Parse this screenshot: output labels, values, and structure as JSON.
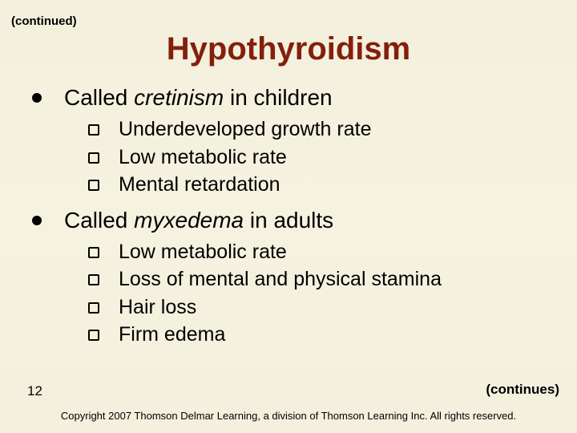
{
  "continued_top": "(continued)",
  "title": "Hypothyroidism",
  "bullets": [
    {
      "pre": "Called ",
      "em": "cretinism",
      "post": " in children",
      "sub": [
        "Underdeveloped growth rate",
        "Low metabolic rate",
        "Mental retardation"
      ]
    },
    {
      "pre": "Called ",
      "em": "myxedema",
      "post": " in adults",
      "sub": [
        "Low metabolic rate",
        "Loss of mental and physical stamina",
        "Hair loss",
        "Firm edema"
      ]
    }
  ],
  "page_number": "12",
  "continues_bottom": "(continues)",
  "copyright": "Copyright 2007 Thomson Delmar Learning, a division of Thomson Learning Inc. All rights reserved."
}
